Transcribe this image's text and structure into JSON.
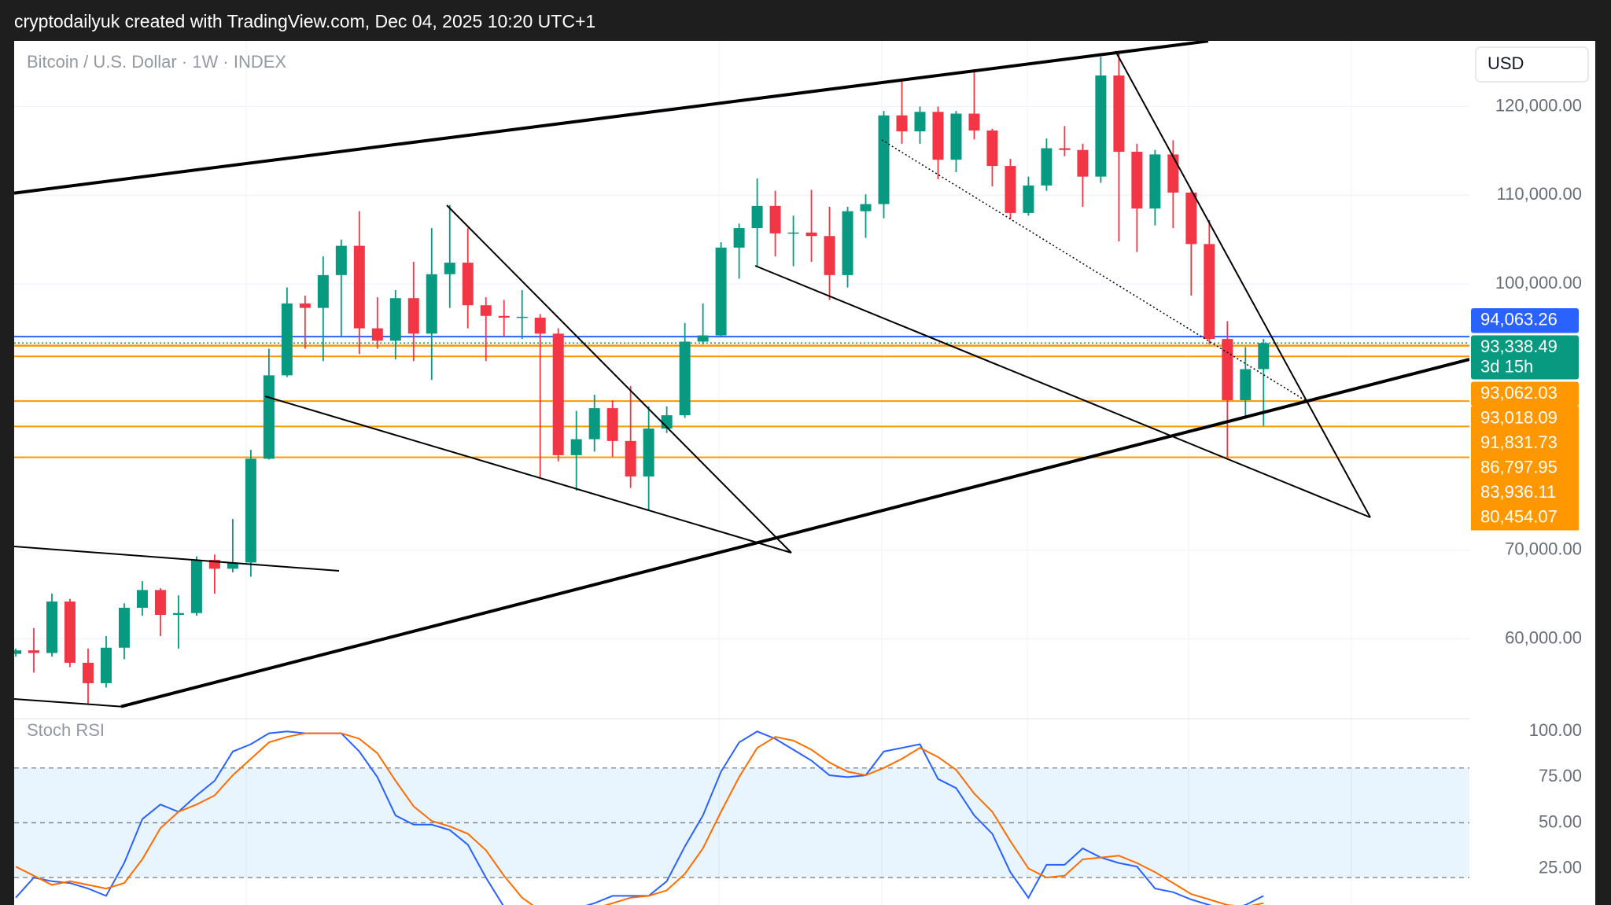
{
  "header": "cryptodailyuk created with TradingView.com, Dec 04, 2025 10:20 UTC+1",
  "chart_data": [
    {
      "type": "candlestick",
      "title": "Bitcoin / U.S. Dollar · 1W · INDEX",
      "currency": "USD",
      "up_color": "#089981",
      "down_color": "#f23645",
      "open": [
        58300,
        58700,
        58400,
        64200,
        57300,
        55000,
        59000,
        63500,
        65500,
        62700,
        62900,
        68900,
        67900,
        68600,
        80300,
        89700,
        97800,
        97300,
        101000,
        104300,
        95000,
        93600,
        98400,
        94400,
        101100,
        102400,
        97600,
        96400,
        96200,
        96200,
        94400,
        80700,
        82500,
        86000,
        82300,
        78300,
        83700,
        85200,
        93500,
        94200,
        104100,
        106300,
        108800,
        105700,
        105800,
        105400,
        101000,
        108200,
        109000,
        119000,
        117200,
        119400,
        114000,
        119200,
        117300,
        113300,
        108000,
        111100,
        115300,
        115100,
        112100,
        123500,
        114900,
        108500,
        114600,
        110300,
        104500,
        93800,
        86900,
        90400
      ],
      "high": [
        58900,
        61200,
        65100,
        64500,
        58900,
        60300,
        64000,
        66500,
        65700,
        64900,
        69300,
        69500,
        73500,
        81300,
        92700,
        99600,
        98700,
        103100,
        105000,
        108200,
        98500,
        99300,
        102500,
        106300,
        108900,
        106300,
        98500,
        98200,
        99300,
        96600,
        95000,
        85700,
        87500,
        86900,
        88500,
        86200,
        86200,
        95600,
        97800,
        104700,
        106800,
        111900,
        110500,
        107700,
        110600,
        108700,
        108700,
        110100,
        119500,
        123000,
        120000,
        120000,
        119500,
        124200,
        117500,
        114100,
        112100,
        116400,
        117800,
        115800,
        125600,
        126300,
        115800,
        115100,
        116200,
        110600,
        107200,
        95800,
        92900,
        93800
      ],
      "low": [
        58000,
        56200,
        58000,
        56800,
        52600,
        54500,
        57700,
        62600,
        60300,
        58900,
        62600,
        65100,
        67500,
        67000,
        80200,
        89500,
        92700,
        91300,
        94100,
        92100,
        92700,
        91500,
        91300,
        89200,
        97300,
        95000,
        91300,
        94100,
        93800,
        78200,
        80000,
        76700,
        81100,
        80500,
        77000,
        74500,
        83200,
        84900,
        93200,
        94100,
        100600,
        102000,
        103100,
        102000,
        102500,
        98200,
        99600,
        105200,
        107400,
        115800,
        115800,
        111800,
        112600,
        116300,
        111000,
        107300,
        107700,
        110500,
        114400,
        108700,
        111400,
        104800,
        103600,
        106600,
        106300,
        98700,
        93200,
        80500,
        84800,
        84000
      ],
      "close": [
        58700,
        58400,
        64200,
        57300,
        55000,
        59000,
        63500,
        65500,
        62700,
        62900,
        68900,
        67900,
        68600,
        80300,
        89700,
        97800,
        97300,
        101000,
        104300,
        95000,
        93600,
        98400,
        94400,
        101100,
        102400,
        97600,
        96400,
        96200,
        96300,
        94400,
        80700,
        82500,
        86000,
        82300,
        78300,
        83700,
        85200,
        93500,
        94200,
        104100,
        106300,
        108800,
        105700,
        105800,
        105400,
        101000,
        108200,
        109000,
        119000,
        117200,
        119400,
        114000,
        119200,
        117300,
        113300,
        108000,
        111100,
        115300,
        115100,
        112100,
        123500,
        114900,
        108500,
        114600,
        110300,
        104500,
        93800,
        86900,
        90400,
        93338.49
      ],
      "ylim": [
        51000,
        127400
      ],
      "yticks": [
        {
          "value": 60000,
          "label": "60,000.00"
        },
        {
          "value": 70000,
          "label": "70,000.00"
        },
        {
          "value": 100000,
          "label": "100,000.00"
        },
        {
          "value": 110000,
          "label": "110,000.00"
        },
        {
          "value": 120000,
          "label": "120,000.00"
        }
      ],
      "grid": true,
      "price_levels": [
        {
          "value": 94063.26,
          "label": "94,063.26",
          "color": "#2962ff"
        },
        {
          "value": 93338.49,
          "label": "93,338.49",
          "countdown": "3d 15h",
          "color": "#089981"
        },
        {
          "value": 93062.03,
          "label": "93,062.03",
          "color": "#ff9800"
        },
        {
          "value": 93018.09,
          "label": "93,018.09",
          "color": "#ff9800"
        },
        {
          "value": 91831.73,
          "label": "91,831.73",
          "color": "#ff9800"
        },
        {
          "value": 86797.95,
          "label": "86,797.95",
          "color": "#ff9800"
        },
        {
          "value": 83936.11,
          "label": "83,936.11",
          "color": "#ff9800"
        },
        {
          "value": 80454.07,
          "label": "80,454.07",
          "color": "#ff9800"
        }
      ]
    },
    {
      "type": "line",
      "title": "Stoch RSI",
      "series": [
        {
          "color": "#2962ff",
          "values": [
            9,
            20,
            18,
            17,
            14,
            10,
            28,
            52,
            60,
            56,
            65,
            73,
            89,
            93,
            99,
            100,
            99,
            99,
            99,
            89,
            75,
            54,
            49,
            49,
            46,
            38,
            20,
            4,
            2,
            1,
            1,
            3,
            6,
            10,
            10,
            10,
            18,
            37,
            54,
            78,
            94,
            100,
            96,
            90,
            84,
            76,
            75,
            76,
            89,
            91,
            93,
            74,
            69,
            54,
            44,
            23,
            9,
            27,
            27,
            36,
            31,
            28,
            26,
            14,
            12,
            8,
            5,
            2,
            5,
            10
          ]
        },
        {
          "color": "#ff6d00",
          "values": [
            26,
            21,
            16,
            18,
            16,
            14,
            17,
            30,
            47,
            56,
            60,
            65,
            76,
            85,
            94,
            97,
            99,
            99,
            99,
            96,
            88,
            73,
            59,
            51,
            48,
            44,
            35,
            21,
            9,
            2,
            1,
            2,
            3,
            6,
            9,
            10,
            13,
            22,
            36,
            56,
            75,
            91,
            97,
            95,
            90,
            83,
            78,
            76,
            80,
            85,
            91,
            86,
            79,
            66,
            56,
            40,
            25,
            20,
            21,
            30,
            31,
            32,
            28,
            23,
            17,
            11,
            8,
            5,
            4,
            6
          ]
        }
      ],
      "ylim": [
        5,
        107
      ],
      "yticks": [
        {
          "value": 100,
          "label": "100.00"
        },
        {
          "value": 75,
          "label": "75.00"
        },
        {
          "value": 50,
          "label": "50.00"
        },
        {
          "value": 25,
          "label": "25.00"
        }
      ],
      "bands": {
        "upper": 80,
        "middle": 50,
        "lower": 20
      }
    }
  ]
}
